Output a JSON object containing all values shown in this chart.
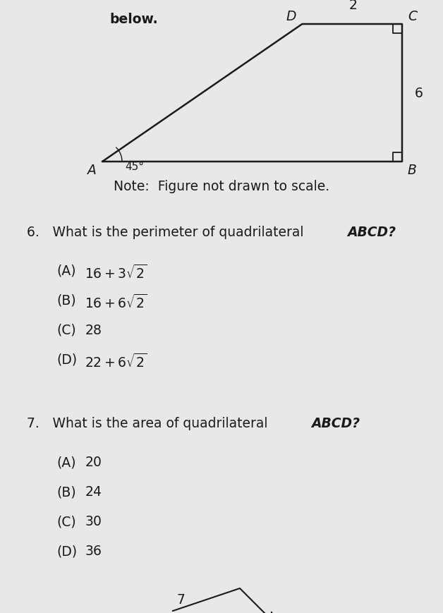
{
  "bg_color": "#e8e8e8",
  "line_color": "#1a1a1a",
  "text_color": "#1a1a1a",
  "fig_width": 6.28,
  "fig_height": 8.7,
  "dpi": 100,
  "header_text": "below.",
  "note_text": "Note:  Figure not drawn to scale.",
  "q6_stem_plain": "6. What is the perimeter of quadrilateral ",
  "q6_stem_italic": "ABCD?",
  "q6_options": [
    [
      "(A)",
      "16 + 3\\sqrt{2}"
    ],
    [
      "(B)",
      "16 + 6\\sqrt{2}"
    ],
    [
      "(C)",
      "28"
    ],
    [
      "(D)",
      "22 + 6\\sqrt{2}"
    ]
  ],
  "q7_stem_plain": "7. What is the area of quadrilateral ",
  "q7_stem_italic": "ABCD?",
  "q7_options": [
    [
      "(A)",
      "20"
    ],
    [
      "(B)",
      "24"
    ],
    [
      "(C)",
      "30"
    ],
    [
      "(D)",
      "36"
    ]
  ],
  "diagram": {
    "A": [
      0.0,
      0.0
    ],
    "B": [
      6.0,
      0.0
    ],
    "C": [
      6.0,
      6.0
    ],
    "D": [
      4.0,
      6.0
    ],
    "angle_label": "45°",
    "label_DC": "2",
    "label_CB": "6"
  },
  "bottom_label": "7"
}
